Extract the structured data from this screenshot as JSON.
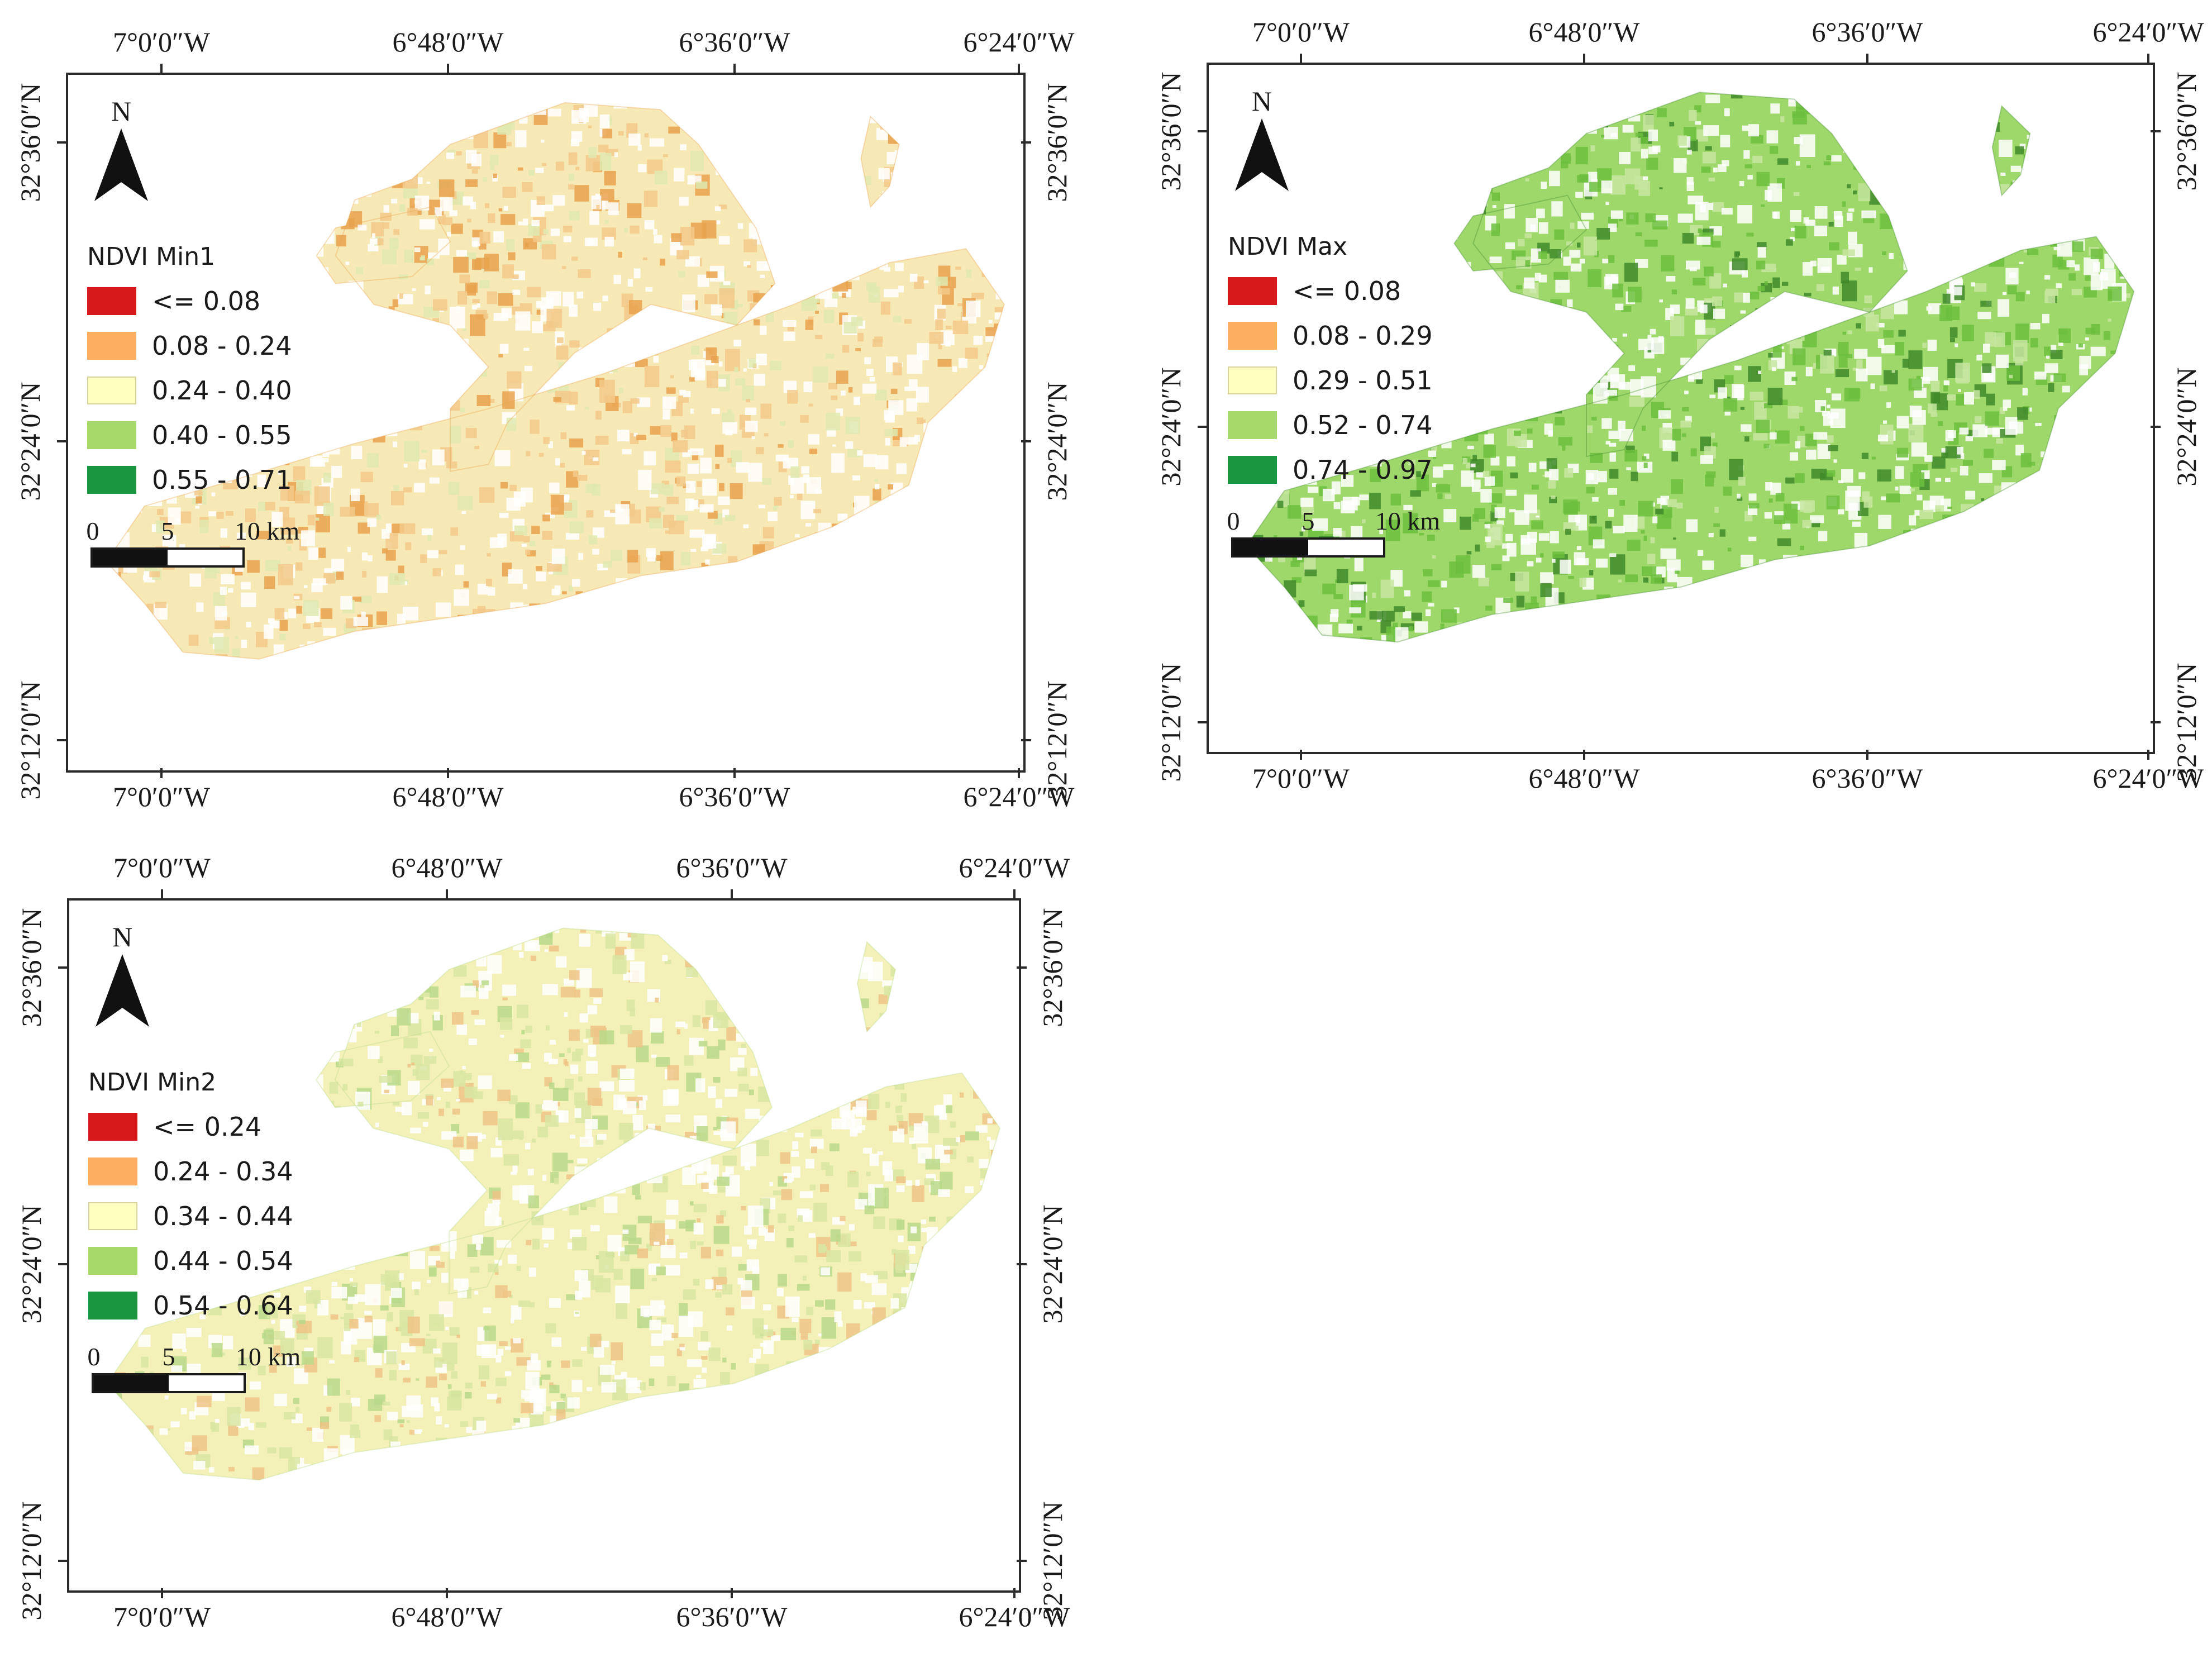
{
  "maps": [
    {
      "id": "min1",
      "legend_title": "NDVI Min1",
      "classes": [
        {
          "label": "<= 0.08",
          "color": "#d7191c"
        },
        {
          "label": "0.08 - 0.24",
          "color": "#fdae61"
        },
        {
          "label": "0.24 - 0.40",
          "color": "#ffffbf"
        },
        {
          "label": "0.40 - 0.55",
          "color": "#a6d96a"
        },
        {
          "label": "0.55 - 0.71",
          "color": "#1a9641"
        }
      ],
      "tint": [
        "#f7e9b5",
        "#f3c98a",
        "#e9a24e",
        "#dfe9b0"
      ]
    },
    {
      "id": "max",
      "legend_title": "NDVI Max",
      "classes": [
        {
          "label": "<= 0.08",
          "color": "#d7191c"
        },
        {
          "label": "0.08 - 0.29",
          "color": "#fdae61"
        },
        {
          "label": "0.29 - 0.51",
          "color": "#ffffbf"
        },
        {
          "label": "0.52 - 0.74",
          "color": "#a6d96a"
        },
        {
          "label": "0.74 - 0.97",
          "color": "#1a9641"
        }
      ],
      "tint": [
        "#9fd86a",
        "#6cbf3e",
        "#3f8a2a",
        "#c7e6a0"
      ]
    },
    {
      "id": "min2",
      "legend_title": "NDVI Min2",
      "classes": [
        {
          "label": "<= 0.24",
          "color": "#d7191c"
        },
        {
          "label": "0.24 - 0.34",
          "color": "#fdae61"
        },
        {
          "label": "0.34 - 0.44",
          "color": "#ffffbf"
        },
        {
          "label": "0.44 - 0.54",
          "color": "#a6d96a"
        },
        {
          "label": "0.54 - 0.64",
          "color": "#1a9641"
        }
      ],
      "tint": [
        "#f4f1b8",
        "#d8e6a2",
        "#b9d98a",
        "#eec487"
      ]
    }
  ],
  "lon_labels": [
    "7°0′0″W",
    "6°48′0″W",
    "6°36′0″W",
    "6°24′0″W"
  ],
  "lat_labels": [
    "32°36′0″N",
    "32°24′0″N",
    "32°12′0″N"
  ],
  "north_label": "N",
  "scale": {
    "zero": "0",
    "mid": "5",
    "end": "10 km"
  }
}
